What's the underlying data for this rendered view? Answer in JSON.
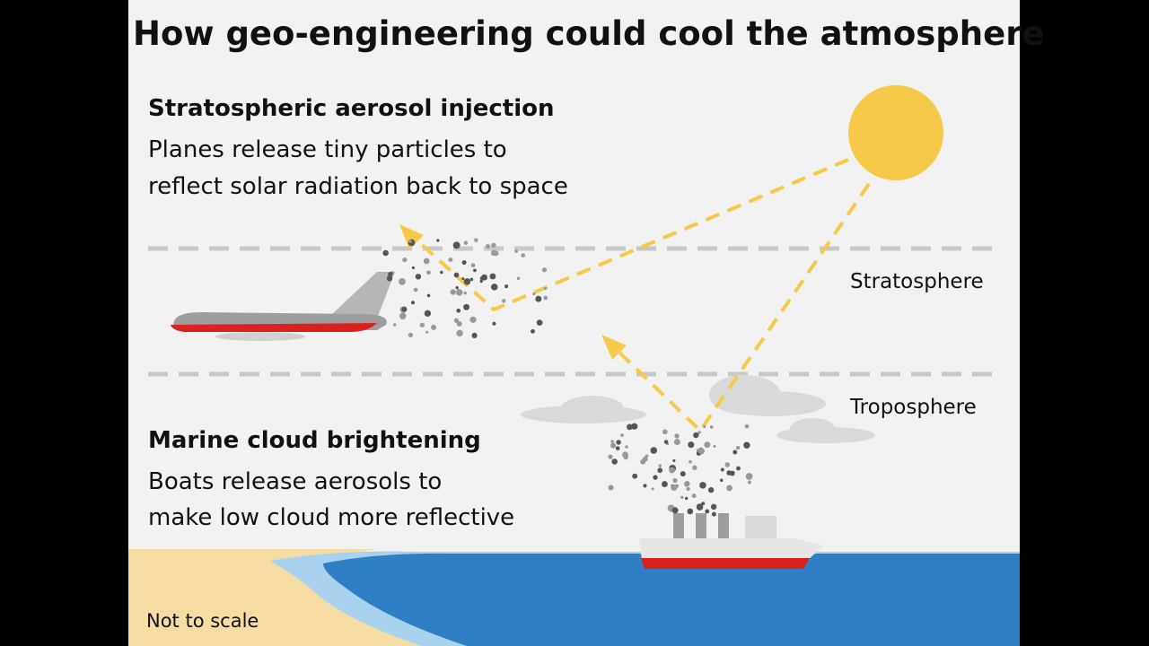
{
  "title": "How geo-engineering could cool the atmosphere",
  "sections": [
    {
      "heading": "Stratospheric aerosol injection",
      "lines": [
        "Planes release tiny particles to",
        "reflect solar radiation back to space"
      ]
    },
    {
      "heading": "Marine cloud brightening",
      "lines": [
        "Boats release aerosols to",
        "make low cloud more reflective"
      ]
    }
  ],
  "layers": [
    "Stratosphere",
    "Troposphere"
  ],
  "note": "Not to scale"
}
